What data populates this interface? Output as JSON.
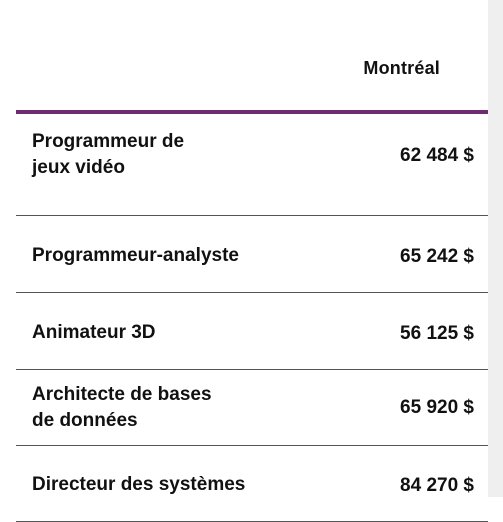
{
  "table": {
    "column_header": "Montréal",
    "rows": [
      {
        "job": [
          "Programmeur de",
          "jeux vidéo"
        ],
        "salary": "62 484 $"
      },
      {
        "job": [
          "Programmeur-analyste"
        ],
        "salary": "65 242 $"
      },
      {
        "job": [
          "Animateur 3D"
        ],
        "salary": "56 125 $"
      },
      {
        "job": [
          "Architecte de bases",
          "de données"
        ],
        "salary": "65 920 $"
      },
      {
        "job": [
          "Directeur des systèmes"
        ],
        "salary": "84 270 $"
      }
    ]
  },
  "colors": {
    "header_rule": "#6f2b6f",
    "row_rule": "#555555",
    "text": "#111111"
  }
}
